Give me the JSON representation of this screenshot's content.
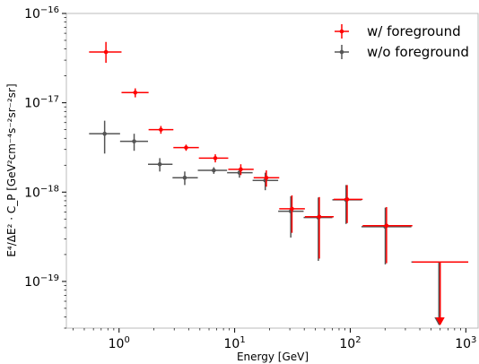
{
  "chart_data": {
    "type": "scatter",
    "title": "",
    "xlabel": "Energy [GeV]",
    "ylabel": "E⁴/ΔE² · C_P [GeV²cm⁻⁴s⁻²sr⁻²sr]",
    "x_scale": "log",
    "y_scale": "log",
    "xlim": [
      0.35,
      1300
    ],
    "ylim": [
      3e-20,
      1e-16
    ],
    "x_ticks": [
      {
        "value": 1,
        "base": "10",
        "exp": "0"
      },
      {
        "value": 10,
        "base": "10",
        "exp": "1"
      },
      {
        "value": 100,
        "base": "10",
        "exp": "2"
      },
      {
        "value": 1000,
        "base": "10",
        "exp": "3"
      }
    ],
    "y_ticks": [
      {
        "value": 1e-19,
        "base": "10",
        "exp": "−19"
      },
      {
        "value": 1e-18,
        "base": "10",
        "exp": "−18"
      },
      {
        "value": 1e-17,
        "base": "10",
        "exp": "−17"
      },
      {
        "value": 1e-16,
        "base": "10",
        "exp": "−16"
      }
    ],
    "grid": false,
    "legend_position": "top-right",
    "series": [
      {
        "name": "w/ foreground",
        "color": "#ff0000",
        "points": [
          {
            "x": 0.77,
            "xlo": 0.55,
            "xhi": 1.05,
            "y": 3.7e-17,
            "ylo": 2.8e-17,
            "yhi": 4.8e-17
          },
          {
            "x": 1.38,
            "xlo": 1.05,
            "xhi": 1.8,
            "y": 1.3e-17,
            "ylo": 1.15e-17,
            "yhi": 1.45e-17
          },
          {
            "x": 2.3,
            "xlo": 1.8,
            "xhi": 2.95,
            "y": 5e-18,
            "ylo": 4.5e-18,
            "yhi": 5.5e-18
          },
          {
            "x": 3.8,
            "xlo": 2.95,
            "xhi": 4.9,
            "y": 3.15e-18,
            "ylo": 2.9e-18,
            "yhi": 3.4e-18
          },
          {
            "x": 6.8,
            "xlo": 4.9,
            "xhi": 8.8,
            "y": 2.4e-18,
            "ylo": 2.15e-18,
            "yhi": 2.65e-18
          },
          {
            "x": 11.3,
            "xlo": 8.8,
            "xhi": 14.6,
            "y": 1.8e-18,
            "ylo": 1.55e-18,
            "yhi": 2.05e-18
          },
          {
            "x": 18.8,
            "xlo": 14.6,
            "xhi": 24.3,
            "y": 1.45e-18,
            "ylo": 1.15e-18,
            "yhi": 1.75e-18
          },
          {
            "x": 31.3,
            "xlo": 24.3,
            "xhi": 40.5,
            "y": 6.5e-19,
            "ylo": 3.5e-19,
            "yhi": 9.2e-19
          },
          {
            "x": 54,
            "xlo": 40.5,
            "xhi": 72,
            "y": 5.3e-19,
            "ylo": 1.8e-19,
            "yhi": 8.8e-19
          },
          {
            "x": 94,
            "xlo": 72,
            "xhi": 128,
            "y": 8.3e-19,
            "ylo": 4.5e-19,
            "yhi": 1.2e-18
          },
          {
            "x": 206,
            "xlo": 128,
            "xhi": 345,
            "y": 4.2e-19,
            "ylo": 1.6e-19,
            "yhi": 6.8e-19
          },
          {
            "x": 600,
            "xlo": 345,
            "xhi": 1050,
            "y": 1.65e-19,
            "upper_limit": true
          }
        ]
      },
      {
        "name": "w/o foreground",
        "color": "#555555",
        "points": [
          {
            "x": 0.75,
            "xlo": 0.55,
            "xhi": 1.02,
            "y": 4.5e-18,
            "ylo": 2.7e-18,
            "yhi": 6.3e-18
          },
          {
            "x": 1.35,
            "xlo": 1.02,
            "xhi": 1.78,
            "y": 3.7e-18,
            "ylo": 2.9e-18,
            "yhi": 4.5e-18
          },
          {
            "x": 2.25,
            "xlo": 1.78,
            "xhi": 2.9,
            "y": 2.05e-18,
            "ylo": 1.7e-18,
            "yhi": 2.4e-18
          },
          {
            "x": 3.7,
            "xlo": 2.9,
            "xhi": 4.8,
            "y": 1.45e-18,
            "ylo": 1.2e-18,
            "yhi": 1.7e-18
          },
          {
            "x": 6.6,
            "xlo": 4.8,
            "xhi": 8.6,
            "y": 1.75e-18,
            "ylo": 1.6e-18,
            "yhi": 1.9e-18
          },
          {
            "x": 11.0,
            "xlo": 8.6,
            "xhi": 14.3,
            "y": 1.65e-18,
            "ylo": 1.45e-18,
            "yhi": 1.85e-18
          },
          {
            "x": 18.4,
            "xlo": 14.3,
            "xhi": 23.8,
            "y": 1.35e-18,
            "ylo": 1.05e-18,
            "yhi": 1.65e-18
          },
          {
            "x": 30.6,
            "xlo": 23.8,
            "xhi": 39.5,
            "y": 6.1e-19,
            "ylo": 3.1e-19,
            "yhi": 9e-19
          },
          {
            "x": 53,
            "xlo": 39.5,
            "xhi": 70,
            "y": 5.2e-19,
            "ylo": 1.7e-19,
            "yhi": 8.7e-19
          },
          {
            "x": 92,
            "xlo": 70,
            "xhi": 125,
            "y": 8.2e-19,
            "ylo": 4.4e-19,
            "yhi": 1.2e-18
          },
          {
            "x": 201,
            "xlo": 125,
            "xhi": 338,
            "y": 4.1e-19,
            "ylo": 1.55e-19,
            "yhi": 6.7e-19
          },
          {
            "x": 585,
            "xlo": 338,
            "xhi": 1030,
            "y": 1.65e-19,
            "upper_limit": true
          }
        ]
      }
    ]
  }
}
